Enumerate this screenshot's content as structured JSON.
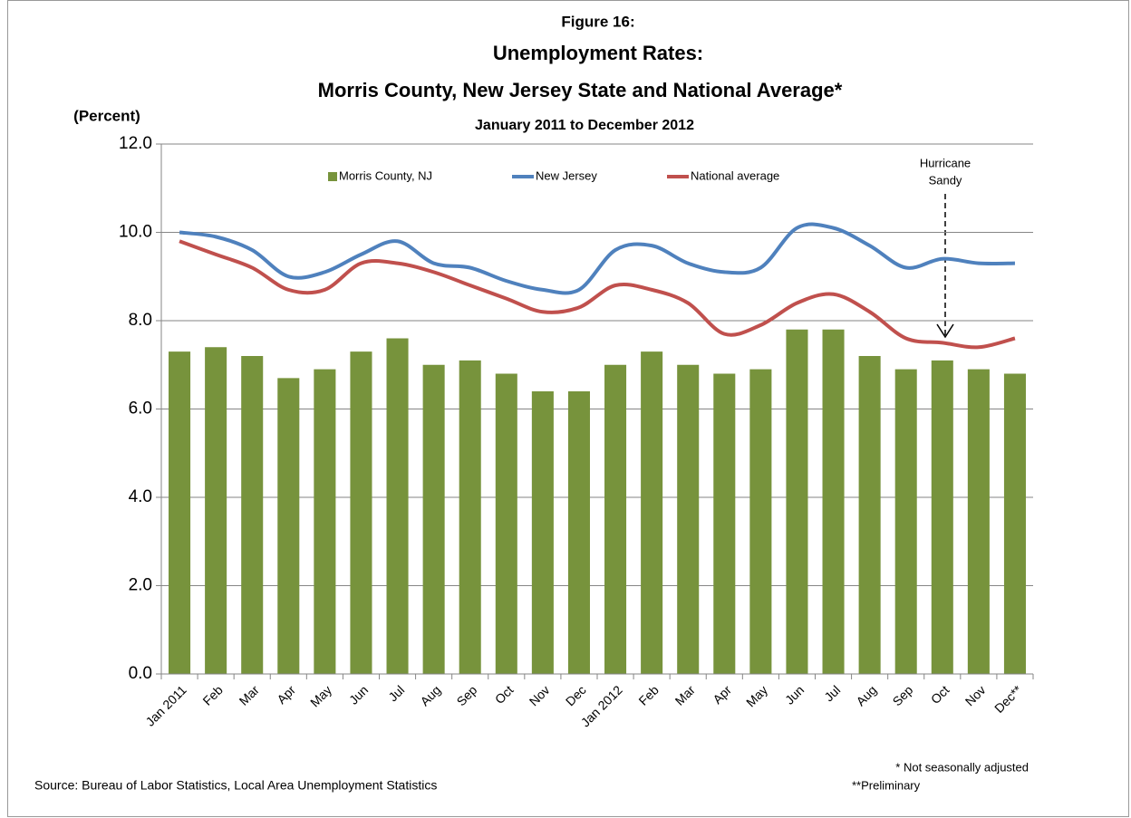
{
  "chart_data": {
    "type": "bar_line",
    "title": "Figure 16:",
    "title2": "Unemployment Rates:",
    "title3": "Morris County, New Jersey State and National Average*",
    "subtitle": "January 2011 to December 2012",
    "y_label": "(Percent)",
    "annotation": [
      "Hurricane",
      "Sandy"
    ],
    "notes": [
      "* Not seasonally adjusted",
      "**Preliminary"
    ],
    "source": "Source: Bureau of Labor Statistics, Local Area Unemployment Statistics",
    "categories": [
      "Jan 2011",
      "Feb",
      "Mar",
      "Apr",
      "May",
      "Jun",
      "Jul",
      "Aug",
      "Sep",
      "Oct",
      "Nov",
      "Dec",
      "Jan 2012",
      "Feb",
      "Mar",
      "Apr",
      "May",
      "Jun",
      "Jul",
      "Aug",
      "Sep",
      "Oct",
      "Nov",
      "Dec**"
    ],
    "series": [
      {
        "name": "Morris County,  NJ",
        "kind": "bar",
        "color": "#77933c",
        "values": [
          7.3,
          7.4,
          7.2,
          6.7,
          6.9,
          7.3,
          7.6,
          7.0,
          7.1,
          6.8,
          6.4,
          6.4,
          7.0,
          7.3,
          7.0,
          6.8,
          6.9,
          7.8,
          7.8,
          7.2,
          6.9,
          7.1,
          6.9,
          6.8
        ]
      },
      {
        "name": "New Jersey",
        "kind": "line",
        "color": "#4f81bd",
        "values": [
          10.0,
          9.9,
          9.6,
          9.0,
          9.1,
          9.5,
          9.8,
          9.3,
          9.2,
          8.9,
          8.7,
          8.7,
          9.6,
          9.7,
          9.3,
          9.1,
          9.2,
          10.1,
          10.1,
          9.7,
          9.2,
          9.4,
          9.3,
          9.3
        ]
      },
      {
        "name": "National average",
        "kind": "line",
        "color": "#c0504d",
        "values": [
          9.8,
          9.5,
          9.2,
          8.7,
          8.7,
          9.3,
          9.3,
          9.1,
          8.8,
          8.5,
          8.2,
          8.3,
          8.8,
          8.7,
          8.4,
          7.7,
          7.9,
          8.4,
          8.6,
          8.2,
          7.6,
          7.5,
          7.4,
          7.6
        ]
      }
    ],
    "ylim": [
      0,
      12
    ],
    "yticks": [
      {
        "value": 0,
        "label": "0.0"
      },
      {
        "value": 2,
        "label": "2.0"
      },
      {
        "value": 4,
        "label": "4.0"
      },
      {
        "value": 6,
        "label": "6.0"
      },
      {
        "value": 8,
        "label": "8.0"
      },
      {
        "value": 10,
        "label": "10.0"
      },
      {
        "value": 12,
        "label": "12.0"
      }
    ],
    "grid": true,
    "legend": "top"
  }
}
